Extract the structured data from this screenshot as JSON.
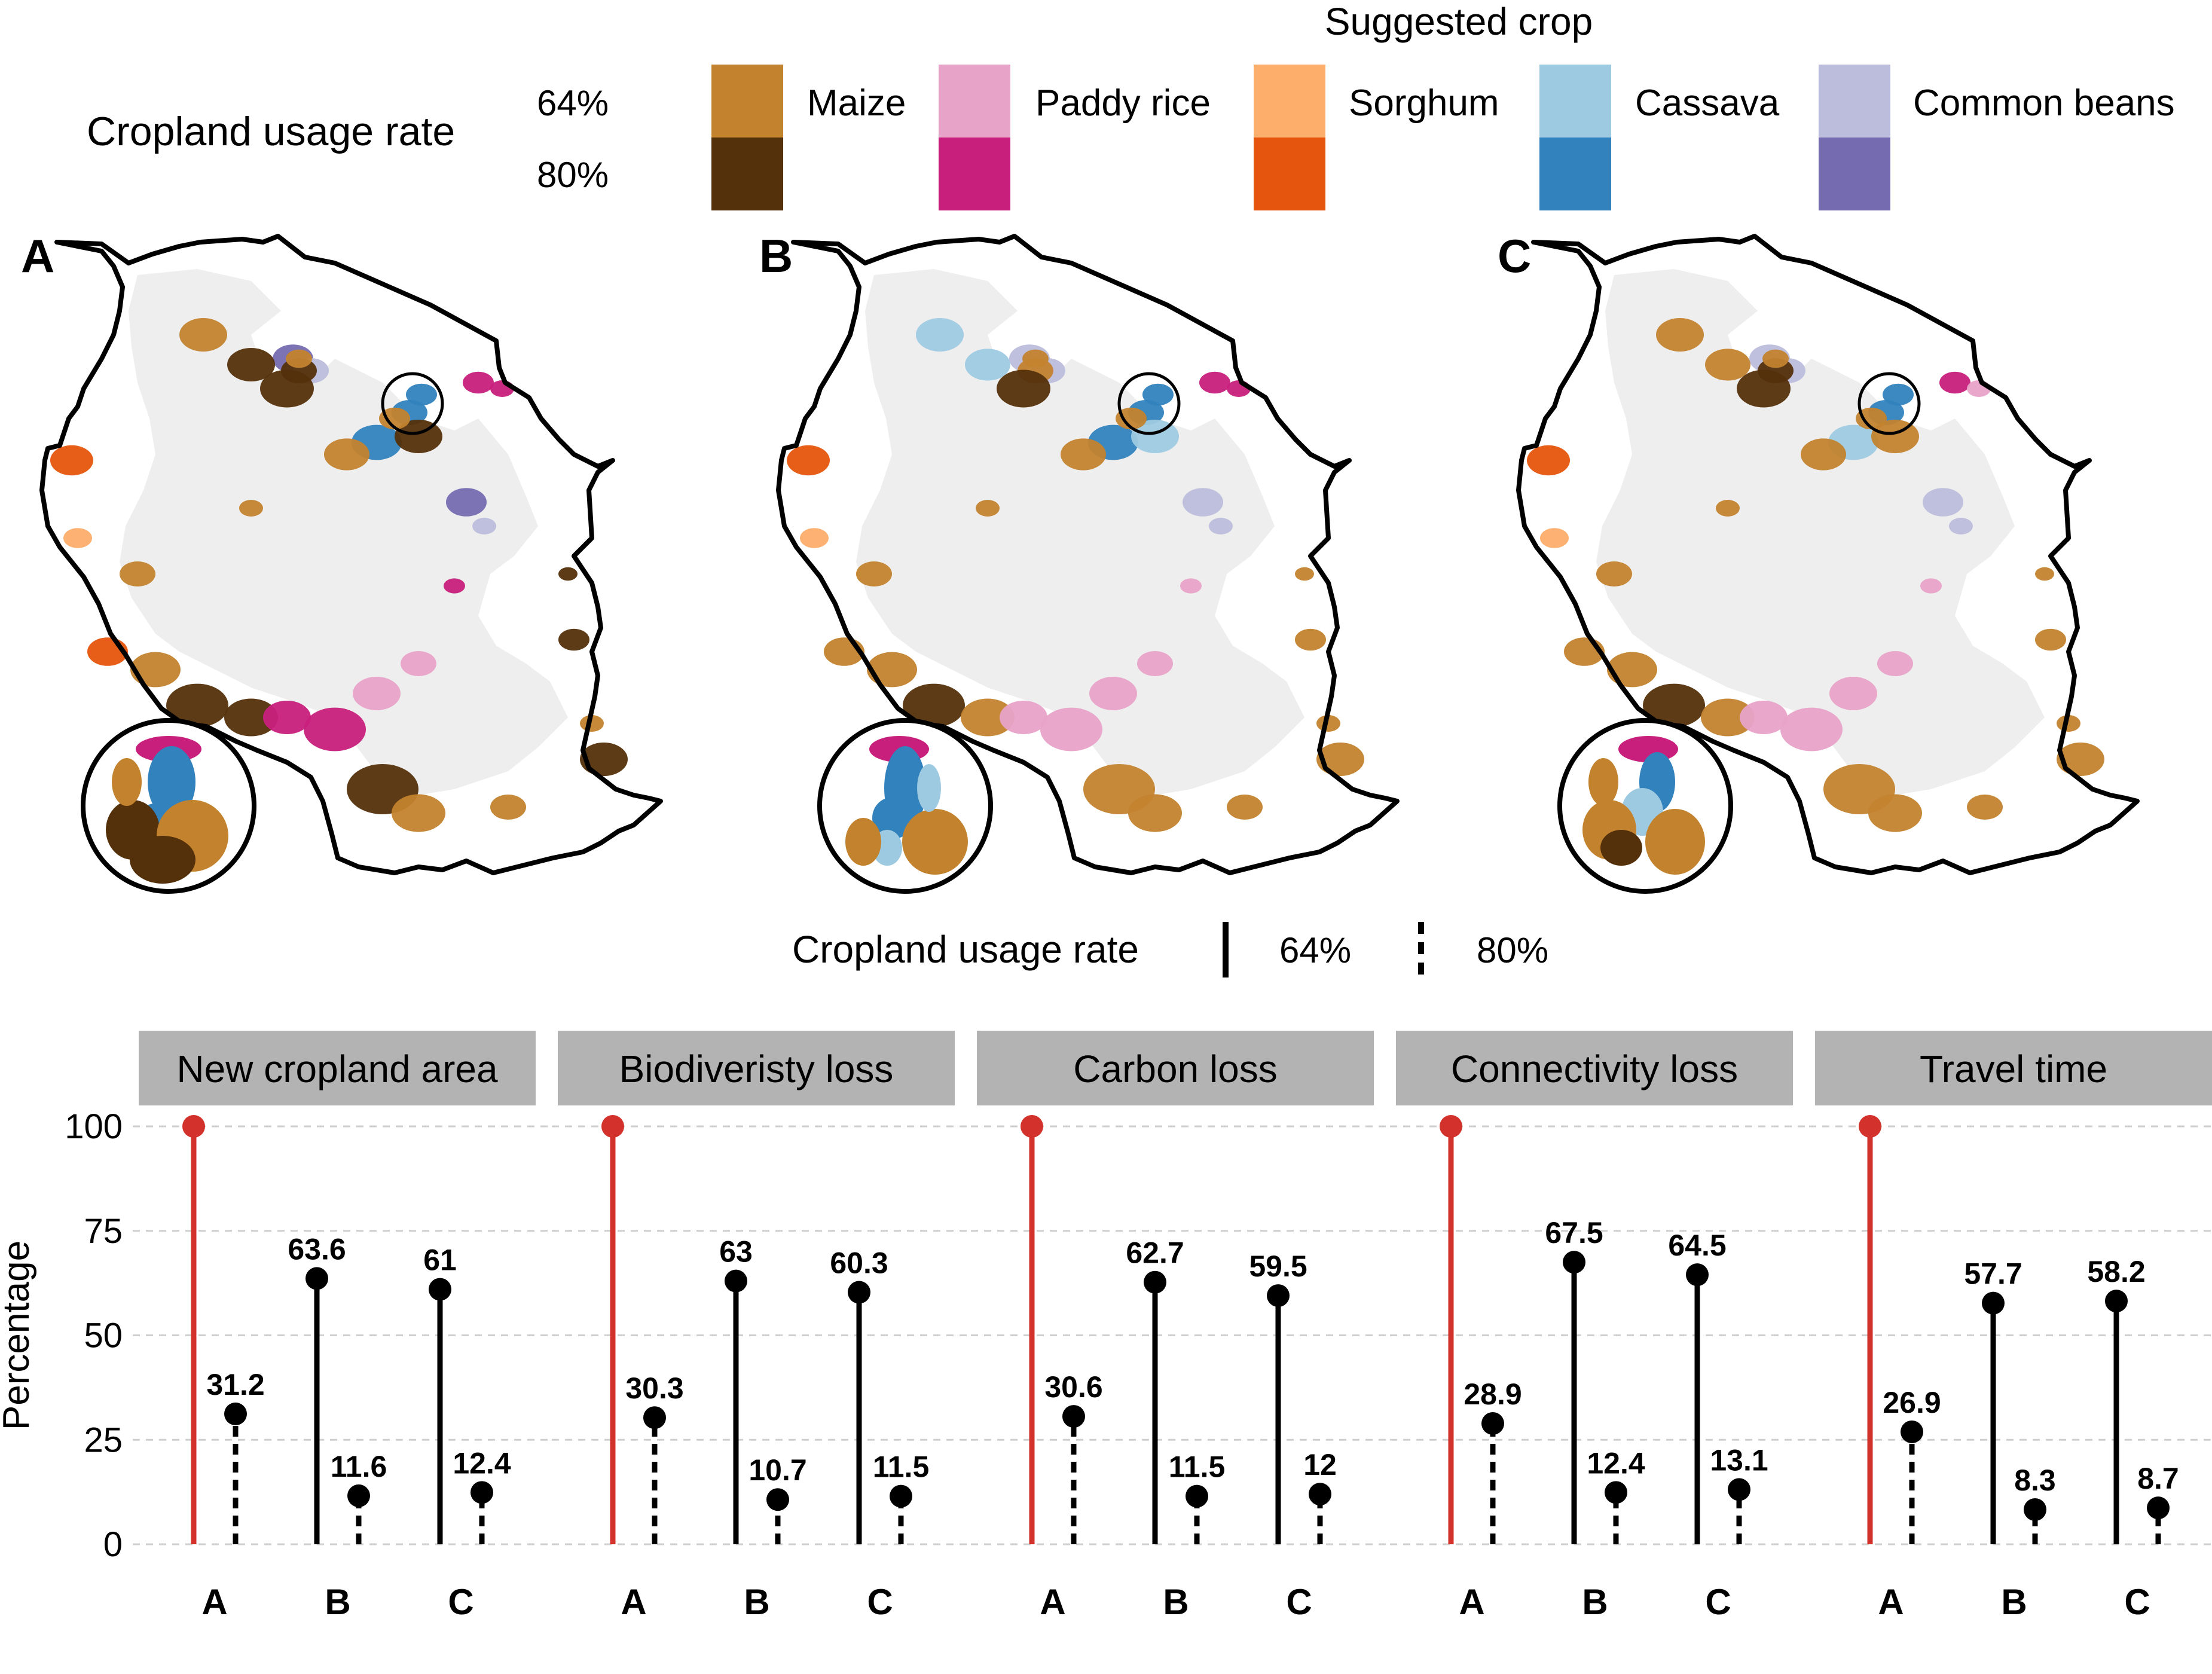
{
  "legend_top": {
    "title": "Suggested crop",
    "row_title": "Cropland usage rate",
    "rates": [
      "64%",
      "80%"
    ],
    "crops": [
      {
        "name": "Maize",
        "light": "#c3832e",
        "dark": "#54300b",
        "icon": "swatch"
      },
      {
        "name": "Paddy rice",
        "light": "#e8a3c8",
        "dark": "#c81f7c",
        "icon": "swatch"
      },
      {
        "name": "Sorghum",
        "light": "#fdae6b",
        "dark": "#e6550d",
        "icon": "swatch"
      },
      {
        "name": "Cassava",
        "light": "#9ecae1",
        "dark": "#3182bd",
        "icon": "swatch"
      },
      {
        "name": "Common beans",
        "light": "#bcbddc",
        "dark": "#756bb1",
        "icon": "swatch"
      }
    ]
  },
  "maps": [
    {
      "label": "A",
      "icon": "map-of-tanzania"
    },
    {
      "label": "B",
      "icon": "map-of-tanzania"
    },
    {
      "label": "C",
      "icon": "map-of-tanzania"
    }
  ],
  "legend_mid": {
    "title": "Cropland usage rate",
    "entries": [
      {
        "label": "64%",
        "linetype": "solid"
      },
      {
        "label": "80%",
        "linetype": "dashed"
      }
    ]
  },
  "colors": {
    "reference": "#d3312b",
    "stem": "#000000",
    "panel_strip": "#b3b3b3",
    "grid": "#cfcfcf",
    "land": "#eeeeee"
  },
  "chart_data": {
    "type": "lollipop",
    "ylabel": "Percentage",
    "ylim": [
      0,
      100
    ],
    "yticks": [
      0,
      25,
      50,
      75,
      100
    ],
    "categories": [
      "A",
      "B",
      "C"
    ],
    "reference_value": 100,
    "grid": "horizontal dashed",
    "panels": [
      {
        "title": "New cropland area",
        "values": {
          "A": [
            100,
            31.2
          ],
          "B": [
            63.6,
            11.6
          ],
          "C": [
            61,
            12.4
          ]
        }
      },
      {
        "title": "Biodiveristy loss",
        "values": {
          "A": [
            100,
            30.3
          ],
          "B": [
            63,
            10.7
          ],
          "C": [
            60.3,
            11.5
          ]
        }
      },
      {
        "title": "Carbon loss",
        "values": {
          "A": [
            100,
            30.6
          ],
          "B": [
            62.7,
            11.5
          ],
          "C": [
            59.5,
            12
          ]
        }
      },
      {
        "title": "Connectivity loss",
        "values": {
          "A": [
            100,
            28.9
          ],
          "B": [
            67.5,
            12.4
          ],
          "C": [
            64.5,
            13.1
          ]
        }
      },
      {
        "title": "Travel time",
        "values": {
          "A": [
            100,
            26.9
          ],
          "B": [
            57.7,
            8.3
          ],
          "C": [
            58.2,
            8.7
          ]
        }
      }
    ]
  }
}
